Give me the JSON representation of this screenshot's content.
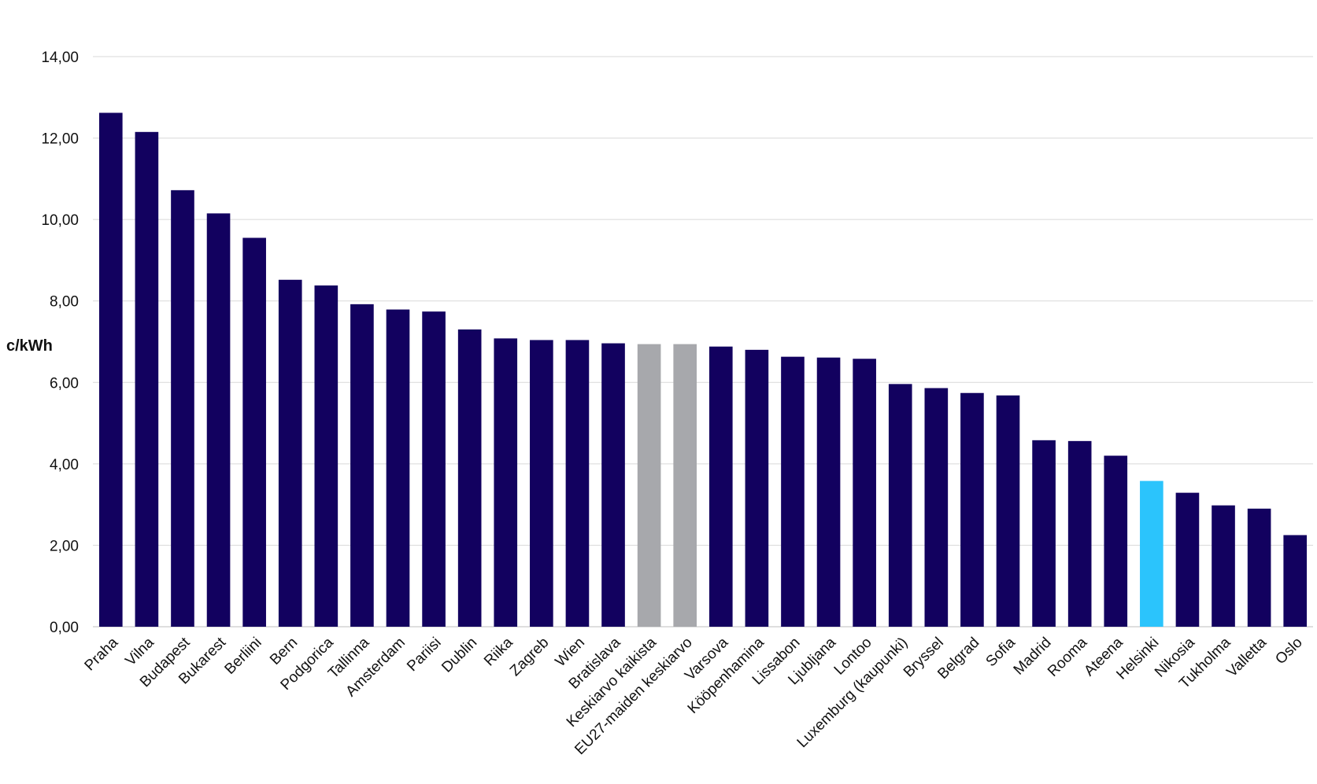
{
  "chart_data": {
    "type": "bar",
    "title": "",
    "xlabel": "",
    "ylabel": "c/kWh",
    "ylim": [
      0,
      14
    ],
    "yticks": [
      "0,00",
      "2,00",
      "4,00",
      "6,00",
      "8,00",
      "10,00",
      "12,00",
      "14,00"
    ],
    "grid": true,
    "legend": "none",
    "categories": [
      "Praha",
      "Vilna",
      "Budapest",
      "Bukarest",
      "Berliini",
      "Bern",
      "Podgorica",
      "Tallinna",
      "Amsterdam",
      "Pariisi",
      "Dublin",
      "Riika",
      "Zagreb",
      "Wien",
      "Bratislava",
      "Keskiarvo kaikista",
      "EU27-maiden keskiarvo",
      "Varsova",
      "Kööpenhamina",
      "Lissabon",
      "Ljubljana",
      "Lontoo",
      "Luxemburg (kaupunki)",
      "Bryssel",
      "Belgrad",
      "Sofia",
      "Madrid",
      "Rooma",
      "Ateena",
      "Helsinki",
      "Nikosia",
      "Tukholma",
      "Valletta",
      "Oslo"
    ],
    "values": [
      12.62,
      12.15,
      10.72,
      10.15,
      9.55,
      8.52,
      8.38,
      7.92,
      7.79,
      7.74,
      7.3,
      7.08,
      7.04,
      7.04,
      6.96,
      6.94,
      6.94,
      6.88,
      6.8,
      6.63,
      6.61,
      6.58,
      5.96,
      5.86,
      5.74,
      5.68,
      4.58,
      4.56,
      4.2,
      3.58,
      3.29,
      2.98,
      2.9,
      2.25
    ],
    "colors": {
      "default": "#12015F",
      "average": "#A7A8AC",
      "highlight": "#2BC4FC"
    },
    "bar_colors": [
      "default",
      "default",
      "default",
      "default",
      "default",
      "default",
      "default",
      "default",
      "default",
      "default",
      "default",
      "default",
      "default",
      "default",
      "default",
      "average",
      "average",
      "default",
      "default",
      "default",
      "default",
      "default",
      "default",
      "default",
      "default",
      "default",
      "default",
      "default",
      "default",
      "highlight",
      "default",
      "default",
      "default",
      "default"
    ]
  }
}
